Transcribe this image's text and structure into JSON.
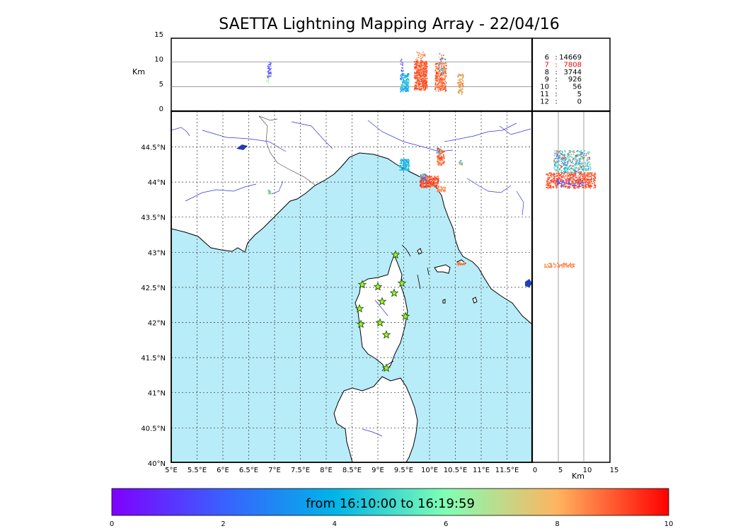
{
  "title": "SAETTA Lightning Mapping Array - 22/04/16",
  "altitude_panel": {
    "unit_label": "Km",
    "ticks": [
      "15",
      "10",
      "5",
      "0"
    ]
  },
  "stations_table": [
    {
      "n": "6",
      "count": "14669",
      "highlight": false
    },
    {
      "n": "7",
      "count": "7808",
      "highlight": true
    },
    {
      "n": "8",
      "count": "3744",
      "highlight": false
    },
    {
      "n": "9",
      "count": "926",
      "highlight": false
    },
    {
      "n": "10",
      "count": "56",
      "highlight": false
    },
    {
      "n": "11",
      "count": "5",
      "highlight": false
    },
    {
      "n": "12",
      "count": "0",
      "highlight": false
    }
  ],
  "map": {
    "lat_ticks": [
      "44.5°N",
      "44°N",
      "43.5°N",
      "43°N",
      "42.5°N",
      "42°N",
      "41.5°N",
      "41°N",
      "40.5°N",
      "40°N"
    ],
    "lon_ticks": [
      "5°E",
      "5.5°E",
      "6°E",
      "6.5°E",
      "7°E",
      "7.5°E",
      "8°E",
      "8.5°E",
      "9°E",
      "9.5°E",
      "10°E",
      "10.5°E",
      "11°E",
      "11.5°E"
    ],
    "sea_color": "#b8ecf8",
    "land_color": "#ffffff",
    "river_color": "#3333dd"
  },
  "side_panel": {
    "unit_label": "Km",
    "ticks": [
      "0",
      "5",
      "10",
      "15"
    ]
  },
  "colorbar": {
    "caption": "from 16:10:00 to 16:19:59",
    "ticks": [
      "0",
      "2",
      "4",
      "6",
      "8",
      "10"
    ],
    "colors": [
      "#7f00ff",
      "#3a60ff",
      "#00b4e8",
      "#80ffb4",
      "#ffb460",
      "#ff0000"
    ]
  },
  "highlight_color": "#ff0000"
}
